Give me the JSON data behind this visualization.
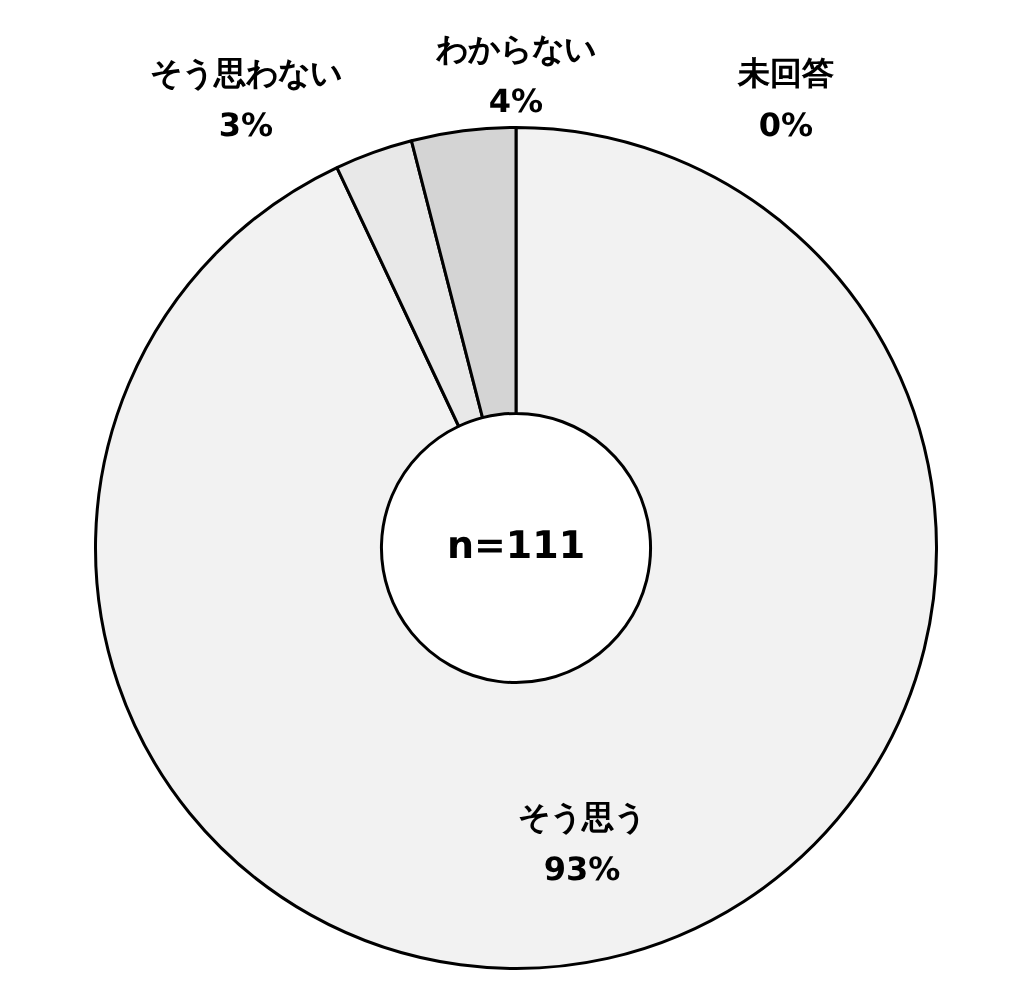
{
  "chart_data": {
    "type": "donut",
    "categories": [
      "未回答",
      "そう思う",
      "そう思わない",
      "わからない"
    ],
    "values": [
      0,
      93,
      3,
      4
    ],
    "value_labels": [
      "0%",
      "93%",
      "3%",
      "4%"
    ],
    "colors": [
      "#ffffff",
      "#f2f2f2",
      "#e8e8e8",
      "#d4d4d4"
    ],
    "annotations": [
      "n=111"
    ]
  }
}
